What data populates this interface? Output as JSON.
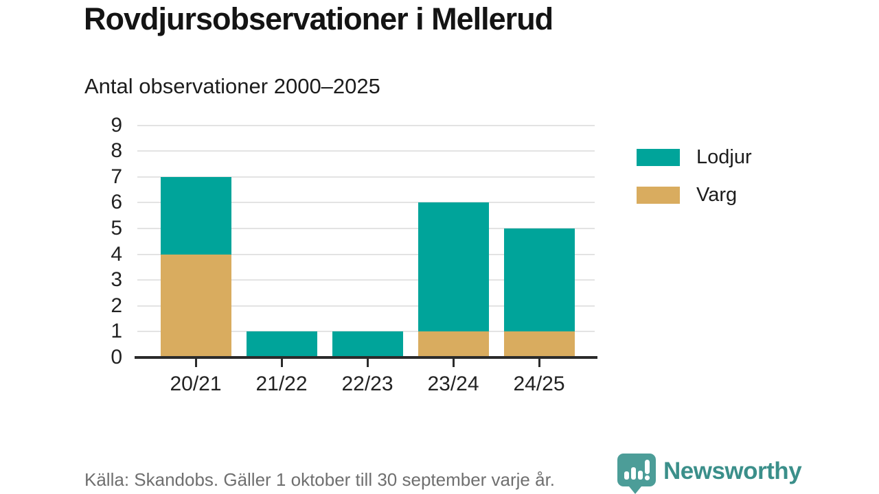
{
  "title": "Rovdjursobservationer i Mellerud",
  "subtitle": "Antal observationer 2000–2025",
  "footer": {
    "source_note": "Källa: Skandobs. Gäller 1 oktober till 30 september varje år."
  },
  "brand": {
    "name": "Newsworthy",
    "text_color": "#3b8f8a",
    "icon": "chart-speech-bubble-icon",
    "icon_color": "#4c9d98"
  },
  "colors": {
    "lodjur": "#00a49a",
    "varg": "#d9ac5f",
    "grid": "#e3e3e3",
    "axis": "#2b2b2b",
    "tick_text": "#222222",
    "muted_text": "#6f6f6f"
  },
  "chart_data": {
    "type": "bar",
    "stacked": true,
    "title": "Rovdjursobservationer i Mellerud",
    "subtitle": "Antal observationer 2000–2025",
    "categories": [
      "20/21",
      "21/22",
      "22/23",
      "23/24",
      "24/25"
    ],
    "series": [
      {
        "name": "Varg",
        "color": "#d9ac5f",
        "values": [
          4,
          0,
          0,
          1,
          1
        ]
      },
      {
        "name": "Lodjur",
        "color": "#00a49a",
        "values": [
          3,
          1,
          1,
          5,
          4
        ]
      }
    ],
    "totals": [
      7,
      1,
      1,
      6,
      5
    ],
    "ylim": [
      0,
      9
    ],
    "yticks": [
      0,
      1,
      2,
      3,
      4,
      5,
      6,
      7,
      8,
      9
    ],
    "xlabel": "",
    "ylabel": "",
    "grid": true,
    "legend_position": "right",
    "legend_order": [
      "Lodjur",
      "Varg"
    ]
  }
}
